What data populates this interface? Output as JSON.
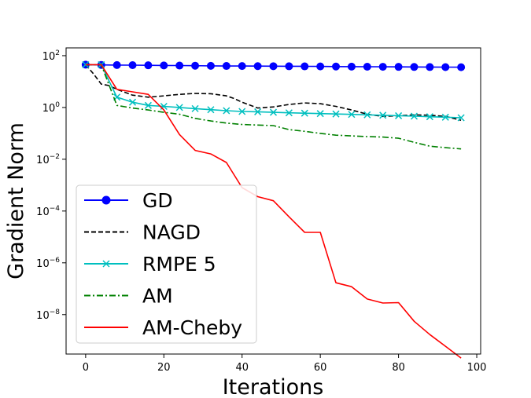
{
  "chart_data": {
    "type": "line",
    "xlabel": "Iterations",
    "ylabel": "Gradient Norm",
    "yscale": "log",
    "xlim": [
      -5,
      101
    ],
    "ylim": [
      3e-10,
      200
    ],
    "x_ticks": [
      0,
      20,
      40,
      60,
      80,
      100
    ],
    "x_tick_labels": [
      "0",
      "20",
      "40",
      "60",
      "80",
      "100"
    ],
    "y_ticks": [
      1e-08,
      1e-06,
      0.0001,
      0.01,
      1,
      100
    ],
    "y_tick_labels": [
      {
        "base": "10",
        "exp": "−8"
      },
      {
        "base": "10",
        "exp": "−6"
      },
      {
        "base": "10",
        "exp": "−4"
      },
      {
        "base": "10",
        "exp": "−2"
      },
      {
        "base": "10",
        "exp": "0"
      },
      {
        "base": "10",
        "exp": "2"
      }
    ],
    "grid": false,
    "legend_position": "lower-left",
    "series": [
      {
        "name": "GD",
        "color": "#0000ff",
        "line_style": "solid",
        "marker": "circle",
        "x": [
          0,
          4,
          8,
          12,
          16,
          20,
          24,
          28,
          32,
          36,
          40,
          44,
          48,
          52,
          56,
          60,
          64,
          68,
          72,
          76,
          80,
          84,
          88,
          92,
          96
        ],
        "y": [
          45,
          44,
          43.5,
          43,
          42.5,
          42,
          41.5,
          41,
          40.5,
          40,
          39.8,
          39.5,
          39.2,
          39,
          38.7,
          38.4,
          38.1,
          37.8,
          37.5,
          37.2,
          37,
          36.7,
          36.4,
          36.1,
          35.8
        ]
      },
      {
        "name": "NAGD",
        "color": "#000000",
        "line_style": "dashed",
        "marker": "none",
        "x": [
          0,
          2,
          4,
          6,
          8,
          12,
          16,
          20,
          24,
          28,
          32,
          36,
          38,
          40,
          44,
          48,
          52,
          56,
          60,
          64,
          68,
          72,
          76,
          80,
          84,
          88,
          92,
          96
        ],
        "y": [
          45,
          20,
          8,
          7,
          5,
          3,
          2.5,
          2.8,
          3.2,
          3.5,
          3.4,
          2.8,
          2.2,
          1.6,
          0.95,
          1.05,
          1.3,
          1.5,
          1.4,
          1.1,
          0.8,
          0.55,
          0.45,
          0.48,
          0.52,
          0.5,
          0.45,
          0.32
        ]
      },
      {
        "name": "RMPE 5",
        "color": "#00bfbf",
        "line_style": "solid",
        "marker": "x",
        "x": [
          0,
          4,
          8,
          12,
          16,
          20,
          24,
          28,
          32,
          36,
          40,
          44,
          48,
          52,
          56,
          60,
          64,
          68,
          72,
          76,
          80,
          84,
          88,
          92,
          96
        ],
        "y": [
          45,
          45,
          2.5,
          1.6,
          1.2,
          1.1,
          1.0,
          0.9,
          0.82,
          0.75,
          0.7,
          0.68,
          0.65,
          0.62,
          0.6,
          0.58,
          0.56,
          0.54,
          0.52,
          0.5,
          0.48,
          0.46,
          0.44,
          0.42,
          0.4
        ]
      },
      {
        "name": "AM",
        "color": "#008000",
        "line_style": "dashdot",
        "marker": "none",
        "x": [
          0,
          4,
          8,
          12,
          16,
          20,
          24,
          28,
          32,
          36,
          40,
          44,
          48,
          52,
          56,
          60,
          64,
          68,
          72,
          76,
          80,
          84,
          88,
          92,
          96
        ],
        "y": [
          45,
          45,
          1.2,
          0.95,
          0.8,
          0.65,
          0.55,
          0.38,
          0.3,
          0.25,
          0.22,
          0.21,
          0.2,
          0.14,
          0.12,
          0.1,
          0.085,
          0.08,
          0.075,
          0.072,
          0.065,
          0.045,
          0.032,
          0.028,
          0.025
        ]
      },
      {
        "name": "AM-Cheby",
        "color": "#ff0000",
        "line_style": "solid",
        "marker": "none",
        "x": [
          0,
          4,
          8,
          12,
          16,
          20,
          24,
          28,
          32,
          36,
          40,
          44,
          48,
          52,
          56,
          60,
          64,
          68,
          72,
          76,
          80,
          84,
          88,
          92,
          96
        ],
        "y": [
          45,
          45,
          5,
          4,
          3.2,
          0.8,
          0.09,
          0.022,
          0.016,
          0.0075,
          0.0008,
          0.00036,
          0.00025,
          6e-05,
          1.5e-05,
          1.5e-05,
          1.7e-07,
          1.2e-07,
          4e-08,
          2.8e-08,
          2.9e-08,
          5.5e-09,
          1.7e-09,
          6e-10,
          2.1e-10
        ]
      }
    ]
  }
}
